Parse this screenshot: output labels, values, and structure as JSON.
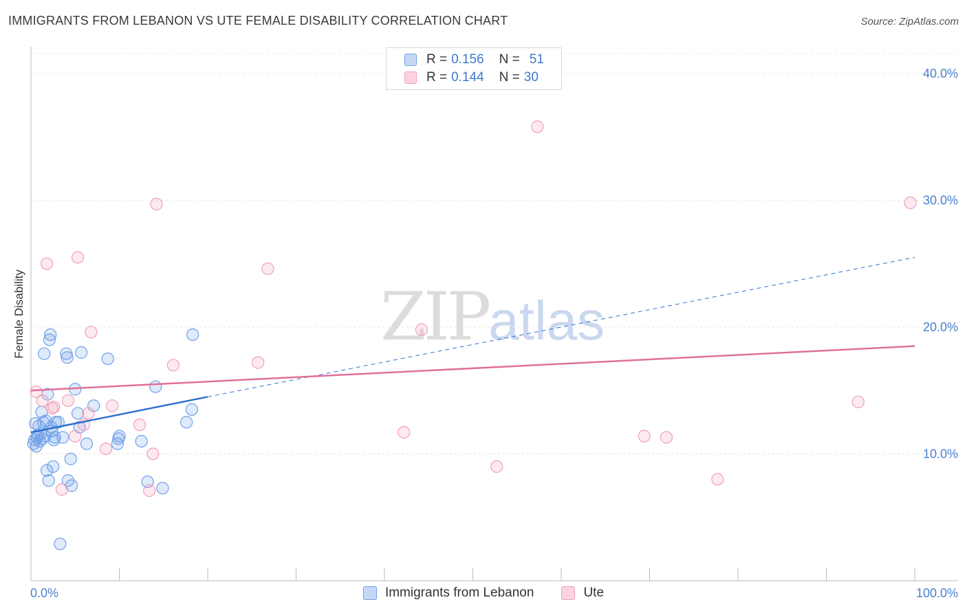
{
  "header": {
    "title": "IMMIGRANTS FROM LEBANON VS UTE FEMALE DISABILITY CORRELATION CHART",
    "source": "Source: ZipAtlas.com"
  },
  "watermark": {
    "zip": "ZIP",
    "atlas": "atlas"
  },
  "legend": {
    "rows": [
      {
        "r_label": "R =",
        "r_value": "0.156",
        "n_label": "N =",
        "n_value": "51",
        "color": "#6fa0e8"
      },
      {
        "r_label": "R =",
        "r_value": "0.144",
        "n_label": "N =",
        "n_value": "30",
        "color": "#f0a0b8"
      }
    ]
  },
  "bottom_legend": [
    {
      "label": "Immigrants from Lebanon",
      "color": "#6fa0e8"
    },
    {
      "label": "Ute",
      "color": "#f0a0b8"
    }
  ],
  "chart_data": {
    "type": "scatter",
    "title": "IMMIGRANTS FROM LEBANON VS UTE FEMALE DISABILITY CORRELATION CHART",
    "xlabel": "",
    "ylabel": "Female Disability",
    "xlim": [
      0,
      100
    ],
    "ylim": [
      0,
      42
    ],
    "y_ticks": [
      10,
      20,
      30,
      40
    ],
    "y_tick_labels": [
      "10.0%",
      "20.0%",
      "30.0%",
      "40.0%"
    ],
    "x_tick_labels": [
      "0.0%",
      "100.0%"
    ],
    "grid": true,
    "series": [
      {
        "name": "Immigrants from Lebanon",
        "color": "#6fa0e8",
        "line_color": "#2f6fd0",
        "trend": {
          "x0": 0,
          "y0": 11.7,
          "x1": 20,
          "y1": 14.5,
          "dash_x1": 100,
          "dash_y1": 25.5
        },
        "points": [
          [
            0.3,
            10.8
          ],
          [
            0.4,
            11.1
          ],
          [
            0.5,
            12.4
          ],
          [
            0.6,
            10.6
          ],
          [
            0.7,
            11.3
          ],
          [
            0.8,
            11.5
          ],
          [
            0.9,
            12.2
          ],
          [
            1.0,
            11.0
          ],
          [
            1.1,
            11.6
          ],
          [
            1.2,
            13.3
          ],
          [
            1.3,
            11.2
          ],
          [
            1.4,
            12.5
          ],
          [
            1.5,
            17.9
          ],
          [
            1.6,
            11.4
          ],
          [
            1.7,
            12.6
          ],
          [
            1.8,
            8.7
          ],
          [
            1.9,
            14.7
          ],
          [
            2.0,
            7.9
          ],
          [
            2.1,
            19.0
          ],
          [
            2.2,
            19.4
          ],
          [
            2.3,
            12.1
          ],
          [
            2.4,
            11.8
          ],
          [
            2.5,
            9.0
          ],
          [
            2.6,
            11.1
          ],
          [
            2.7,
            11.3
          ],
          [
            2.8,
            12.5
          ],
          [
            3.1,
            12.5
          ],
          [
            3.3,
            2.9
          ],
          [
            4.0,
            17.9
          ],
          [
            4.1,
            17.6
          ],
          [
            4.2,
            7.9
          ],
          [
            4.5,
            9.6
          ],
          [
            4.6,
            7.5
          ],
          [
            5.0,
            15.1
          ],
          [
            5.3,
            13.2
          ],
          [
            5.5,
            12.1
          ],
          [
            5.7,
            18.0
          ],
          [
            6.3,
            10.8
          ],
          [
            7.1,
            13.8
          ],
          [
            8.7,
            17.5
          ],
          [
            9.8,
            10.8
          ],
          [
            9.9,
            11.2
          ],
          [
            12.5,
            11.0
          ],
          [
            13.2,
            7.8
          ],
          [
            14.1,
            15.3
          ],
          [
            14.9,
            7.3
          ],
          [
            17.6,
            12.5
          ],
          [
            18.2,
            13.5
          ],
          [
            18.3,
            19.4
          ],
          [
            10.0,
            11.4
          ],
          [
            3.6,
            11.3
          ]
        ]
      },
      {
        "name": "Ute",
        "color": "#f0a0b8",
        "line_color": "#e0709a",
        "trend": {
          "x0": 0,
          "y0": 15.0,
          "x1": 100,
          "y1": 18.5
        },
        "points": [
          [
            0.6,
            14.9
          ],
          [
            1.3,
            14.2
          ],
          [
            1.8,
            25.0
          ],
          [
            2.4,
            13.6
          ],
          [
            2.6,
            13.7
          ],
          [
            3.5,
            7.2
          ],
          [
            4.2,
            14.2
          ],
          [
            5.0,
            11.4
          ],
          [
            5.3,
            25.5
          ],
          [
            6.0,
            12.3
          ],
          [
            6.8,
            19.6
          ],
          [
            8.5,
            10.4
          ],
          [
            9.2,
            13.8
          ],
          [
            12.3,
            12.3
          ],
          [
            13.4,
            7.1
          ],
          [
            13.8,
            10.0
          ],
          [
            14.2,
            29.7
          ],
          [
            16.1,
            17.0
          ],
          [
            25.7,
            17.2
          ],
          [
            26.8,
            24.6
          ],
          [
            42.2,
            11.7
          ],
          [
            44.2,
            19.8
          ],
          [
            52.7,
            9.0
          ],
          [
            57.3,
            35.8
          ],
          [
            69.4,
            11.4
          ],
          [
            71.9,
            11.3
          ],
          [
            77.7,
            8.0
          ],
          [
            93.6,
            14.1
          ],
          [
            99.5,
            29.8
          ],
          [
            6.5,
            13.2
          ]
        ]
      }
    ]
  }
}
